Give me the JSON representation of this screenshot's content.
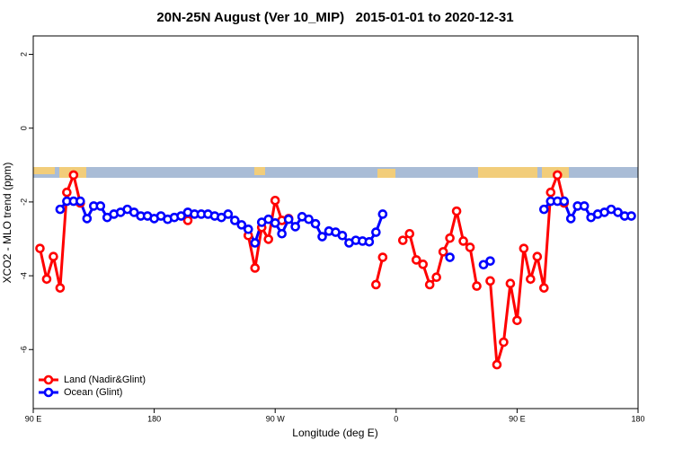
{
  "chart_data": {
    "type": "line",
    "title": "20N-25N August (Ver 10_MIP)   2015-01-01 to 2020-12-31",
    "x_label": "Longitude (deg E)",
    "y_label": "XCO2 - MLO trend (ppm)",
    "xlim": [
      90,
      540
    ],
    "xticks": [
      {
        "value": 90,
        "label": "90 E"
      },
      180,
      {
        "value": 270,
        "label": "90 W"
      },
      {
        "value": 360,
        "label": "0"
      },
      {
        "value": 450,
        "label": "90 E"
      },
      {
        "value": 540,
        "label": "180"
      }
    ],
    "ylim": [
      -7.6,
      2.5
    ],
    "yticks": [
      2,
      0,
      -2,
      -4,
      -6
    ],
    "legend": "bottom-left",
    "x": [
      95,
      100,
      105,
      110,
      115,
      120,
      125,
      130,
      135,
      140,
      145,
      150,
      155,
      160,
      165,
      170,
      175,
      180,
      185,
      190,
      195,
      200,
      205,
      210,
      215,
      220,
      225,
      230,
      235,
      240,
      245,
      250,
      255,
      260,
      265,
      270,
      275,
      280,
      285,
      290,
      295,
      300,
      305,
      310,
      315,
      320,
      325,
      330,
      335,
      340,
      345,
      350,
      355,
      360,
      365,
      370,
      375,
      380,
      385,
      390,
      395,
      400,
      405,
      410,
      415,
      420,
      425,
      430,
      435,
      440,
      445,
      450,
      455,
      460,
      465,
      470,
      475,
      480,
      485,
      490,
      495,
      500,
      505,
      510,
      515,
      520,
      525,
      530,
      535,
      540
    ],
    "series": [
      {
        "name": "Land (Nadir&Glint)",
        "color": "#ff0000",
        "values": [
          -3.26,
          -4.09,
          -3.48,
          -4.33,
          -1.74,
          -1.27,
          -2.03,
          null,
          null,
          null,
          null,
          null,
          null,
          null,
          null,
          null,
          null,
          null,
          null,
          null,
          null,
          null,
          -2.5,
          null,
          null,
          null,
          null,
          null,
          null,
          null,
          null,
          -2.91,
          -3.79,
          -2.69,
          -3.01,
          -1.96,
          -2.5,
          -2.45,
          null,
          null,
          null,
          null,
          null,
          null,
          null,
          null,
          null,
          null,
          null,
          null,
          -4.24,
          -3.5,
          null,
          null,
          -3.04,
          -2.86,
          -3.57,
          -3.69,
          -4.24,
          -4.04,
          -3.35,
          -2.98,
          -2.25,
          -3.06,
          -3.23,
          -4.28,
          null,
          -4.14,
          -6.41,
          -5.8,
          -4.21,
          -5.21,
          -3.26,
          -4.09,
          -3.48,
          -4.33,
          -1.74,
          -1.27,
          -2.03,
          null,
          null,
          null,
          null,
          null,
          null,
          null,
          null,
          null,
          null,
          null
        ]
      },
      {
        "name": "Ocean (Glint)",
        "color": "#0000ff",
        "values": [
          null,
          null,
          null,
          -2.2,
          -1.98,
          -1.98,
          -1.98,
          -2.45,
          -2.11,
          -2.11,
          -2.42,
          -2.33,
          -2.28,
          -2.2,
          -2.28,
          -2.38,
          -2.38,
          -2.45,
          -2.38,
          -2.47,
          -2.42,
          -2.38,
          -2.28,
          -2.33,
          -2.33,
          -2.33,
          -2.38,
          -2.42,
          -2.33,
          -2.5,
          -2.62,
          -2.74,
          -3.11,
          -2.55,
          -2.47,
          -2.57,
          -2.86,
          -2.47,
          -2.67,
          -2.4,
          -2.47,
          -2.59,
          -2.94,
          -2.79,
          -2.82,
          -2.91,
          -3.11,
          -3.04,
          -3.06,
          -3.08,
          -2.82,
          -2.33,
          null,
          null,
          null,
          null,
          null,
          null,
          null,
          null,
          null,
          -3.5,
          null,
          null,
          null,
          null,
          -3.7,
          -3.6,
          null,
          null,
          null,
          null,
          null,
          null,
          null,
          -2.2,
          -1.98,
          -1.98,
          -1.98,
          -2.45,
          -2.11,
          -2.11,
          -2.42,
          -2.33,
          -2.28,
          -2.2,
          -2.28,
          -2.38,
          -2.38,
          null
        ]
      }
    ]
  }
}
